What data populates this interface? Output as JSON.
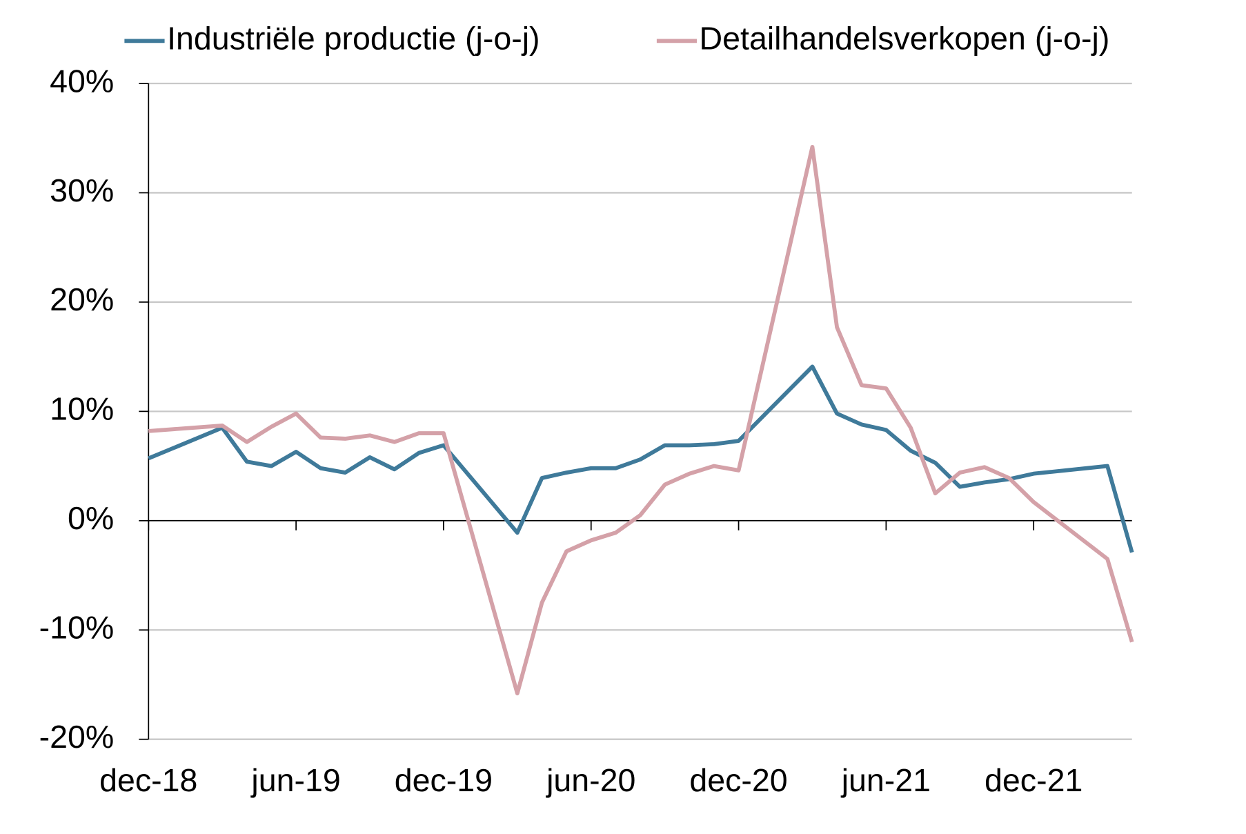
{
  "chart_data": {
    "type": "line",
    "x": [
      0,
      3,
      4,
      5,
      6,
      7,
      8,
      9,
      10,
      11,
      12,
      15,
      16,
      17,
      18,
      19,
      20,
      21,
      22,
      23,
      24,
      27,
      28,
      29,
      30,
      31,
      32,
      33,
      34,
      35,
      36,
      39,
      40
    ],
    "xlim": [
      0,
      40
    ],
    "xticks": [
      {
        "value": 0,
        "label": "dec-18"
      },
      {
        "value": 6,
        "label": "jun-19"
      },
      {
        "value": 12,
        "label": "dec-19"
      },
      {
        "value": 18,
        "label": "jun-20"
      },
      {
        "value": 24,
        "label": "dec-20"
      },
      {
        "value": 30,
        "label": "jun-21"
      },
      {
        "value": 36,
        "label": "dec-21"
      }
    ],
    "ylim": [
      -20,
      40
    ],
    "yticks": [
      {
        "value": -20,
        "label": "-20%"
      },
      {
        "value": -10,
        "label": "-10%"
      },
      {
        "value": 0,
        "label": "0%"
      },
      {
        "value": 10,
        "label": "10%"
      },
      {
        "value": 20,
        "label": "20%"
      },
      {
        "value": 30,
        "label": "30%"
      },
      {
        "value": 40,
        "label": "40%"
      }
    ],
    "grid": true,
    "legend": "top",
    "series": [
      {
        "name": "Industriële productie (j-o-j)",
        "color": "#3f7a9a",
        "values": [
          5.7,
          8.5,
          5.4,
          5.0,
          6.3,
          4.8,
          4.4,
          5.8,
          4.7,
          6.2,
          6.9,
          -1.1,
          3.9,
          4.4,
          4.8,
          4.8,
          5.6,
          6.9,
          6.9,
          7.0,
          7.3,
          14.1,
          9.8,
          8.8,
          8.3,
          6.4,
          5.3,
          3.1,
          3.5,
          3.8,
          4.3,
          5.0,
          -2.9
        ]
      },
      {
        "name": "Detailhandelsverkopen (j-o-j)",
        "color": "#d4a1a8",
        "values": [
          8.2,
          8.7,
          7.2,
          8.6,
          9.8,
          7.6,
          7.5,
          7.8,
          7.2,
          8.0,
          8.0,
          -15.8,
          -7.5,
          -2.8,
          -1.8,
          -1.1,
          0.5,
          3.3,
          4.3,
          5.0,
          4.6,
          34.2,
          17.7,
          12.4,
          12.1,
          8.5,
          2.5,
          4.4,
          4.9,
          3.9,
          1.7,
          -3.5,
          -11.1
        ]
      }
    ]
  }
}
